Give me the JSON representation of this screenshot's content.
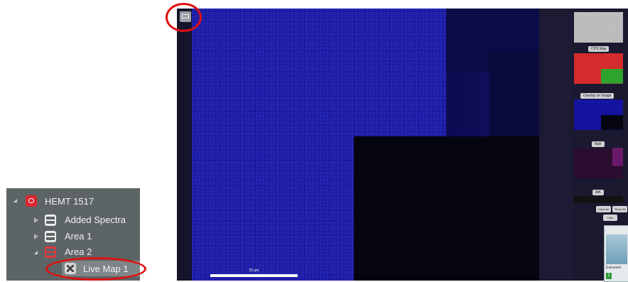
{
  "tree": {
    "project_label": "HEMT 1517",
    "items": [
      {
        "label": "Added Spectra"
      },
      {
        "label": "Area 1"
      },
      {
        "label": "Area 2"
      },
      {
        "label": "Live Map 1"
      }
    ]
  },
  "viewer": {
    "scalebar_label": "20 µm",
    "thumbnails": [
      {
        "label": "CPS Map"
      },
      {
        "label": "Overlay on Image"
      },
      {
        "label": "NaK"
      },
      {
        "label": "AlK"
      }
    ],
    "buttons": {
      "clear_all": "Clear All",
      "show_all": "Show All",
      "hide": "Hide"
    },
    "mini_panel": {
      "text": "Extracted",
      "badge": "1"
    }
  },
  "colors": {
    "annotation_red": "#e01010",
    "map_blue": "#1f1fa6",
    "tree_bg": "#5d6466"
  }
}
